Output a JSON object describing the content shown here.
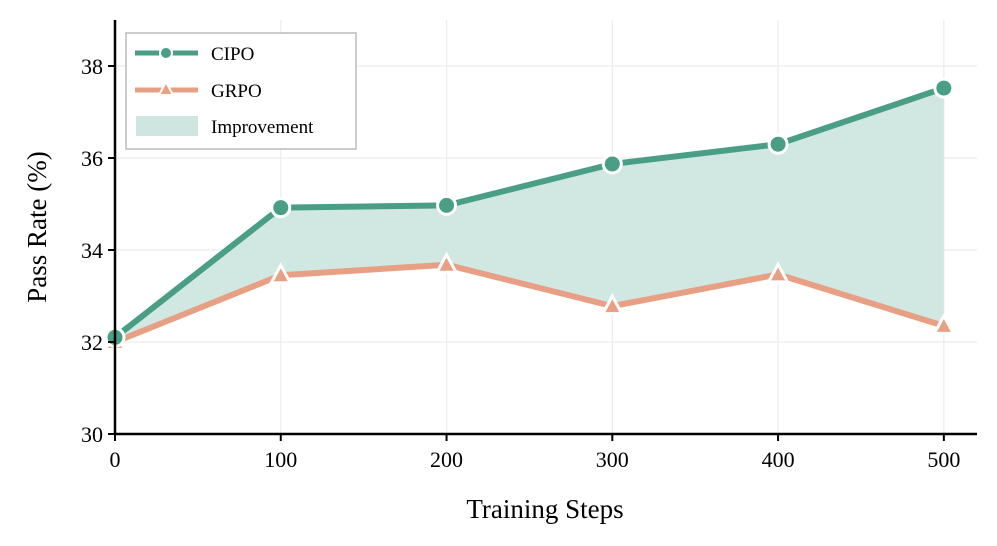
{
  "chart_data": {
    "type": "line",
    "title": "",
    "xlabel": "Training Steps",
    "ylabel": "Pass Rate (%)",
    "x": [
      0,
      100,
      200,
      300,
      400,
      500
    ],
    "xlim": [
      0,
      520
    ],
    "ylim": [
      30,
      39
    ],
    "xticks": [
      "0",
      "100",
      "200",
      "300",
      "400",
      "500"
    ],
    "yticks": [
      "30",
      "32",
      "34",
      "36",
      "38"
    ],
    "grid": true,
    "legend_position": "top-left",
    "series": [
      {
        "name": "CIPO",
        "values": [
          32.1,
          34.92,
          34.97,
          35.87,
          36.3,
          37.52
        ],
        "color": "#4a9e86",
        "marker": "circle"
      },
      {
        "name": "GRPO",
        "values": [
          32.0,
          33.45,
          33.68,
          32.78,
          33.47,
          32.35
        ],
        "color": "#e8a085",
        "marker": "triangle"
      }
    ],
    "fill_between": {
      "name": "Improvement",
      "color": "#cfe6e0"
    }
  }
}
